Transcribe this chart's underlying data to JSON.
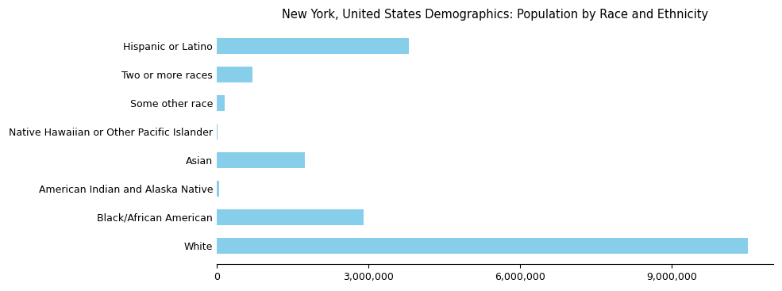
{
  "title": "New York, United States Demographics: Population by Race and Ethnicity",
  "categories": [
    "White",
    "Black/African American",
    "American Indian and Alaska Native",
    "Asian",
    "Native Hawaiian or Other Pacific Islander",
    "Some other race",
    "Two or more races",
    "Hispanic or Latino"
  ],
  "values": [
    10500000,
    2900000,
    40000,
    1750000,
    15000,
    150000,
    700000,
    3800000
  ],
  "bar_color": "#87CEEB",
  "background_color": "#ffffff",
  "xlim": [
    0,
    11000000
  ],
  "xticks": [
    0,
    3000000,
    6000000,
    9000000
  ],
  "title_fontsize": 10.5,
  "tick_fontsize": 9,
  "bar_height": 0.55
}
